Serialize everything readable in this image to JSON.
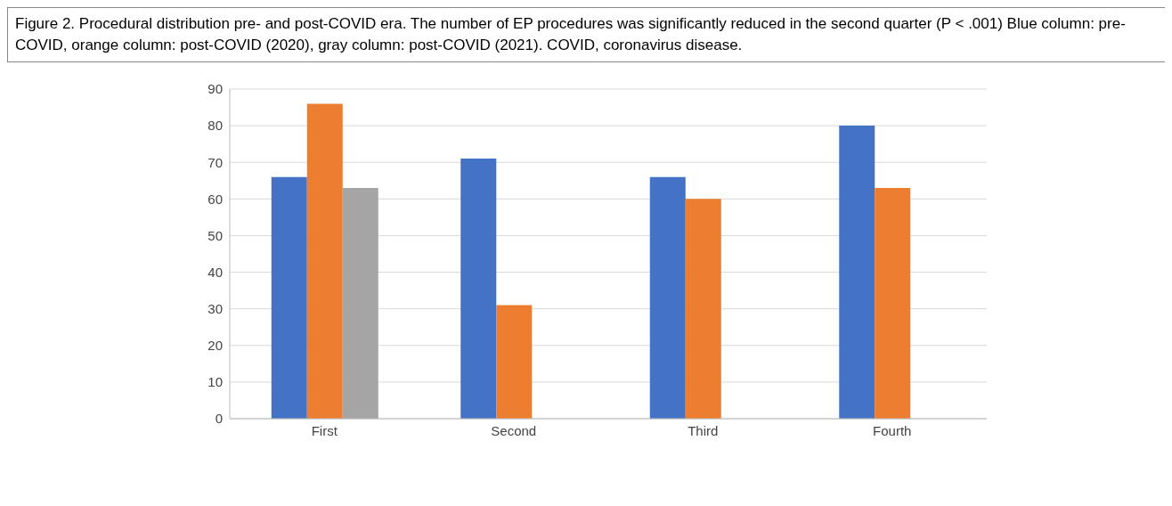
{
  "chart_data": {
    "type": "bar",
    "title": "Figure 2.  Procedural distribution pre- and post-COVID era. The number of EP procedures was significantly reduced in the second quarter (P < .001) Blue column: pre-COVID, orange column: post-COVID (2020), gray column: post-COVID (2021). COVID, coronavirus disease.",
    "categories": [
      "First",
      "Second",
      "Third",
      "Fourth"
    ],
    "series": [
      {
        "color": "#4472c4",
        "values": [
          66,
          71,
          66,
          80
        ]
      },
      {
        "color": "#ed7d31",
        "values": [
          86,
          31,
          60,
          63
        ]
      },
      {
        "color": "#a5a5a5",
        "values": [
          63,
          null,
          null,
          null
        ]
      }
    ],
    "ylim": [
      0,
      90
    ],
    "yticks": [
      0,
      10,
      20,
      30,
      40,
      50,
      60,
      70,
      80,
      90
    ],
    "grid": "y",
    "legend": false
  }
}
